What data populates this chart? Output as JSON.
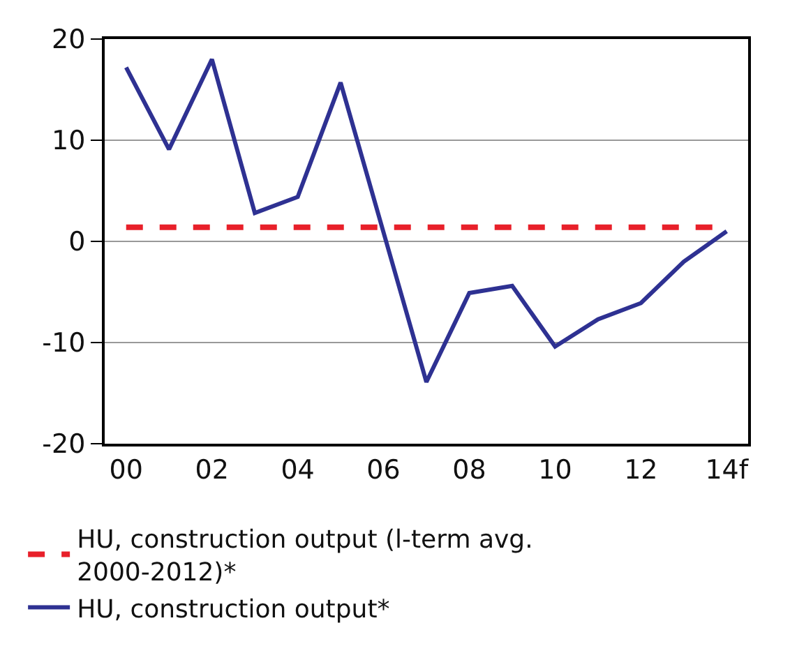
{
  "chart_data": {
    "type": "line",
    "categories": [
      "00",
      null,
      "02",
      null,
      "04",
      null,
      "06",
      null,
      "08",
      null,
      "10",
      null,
      "12",
      null,
      "14f"
    ],
    "series": [
      {
        "name": "HU, construction output*",
        "color": "#2e3192",
        "values": [
          17.2,
          9.1,
          18.0,
          2.8,
          4.4,
          15.7,
          0.9,
          -13.9,
          -5.1,
          -4.4,
          -10.4,
          -7.7,
          -6.1,
          -2.0,
          1.0
        ]
      }
    ],
    "ref_lines": [
      {
        "axis": "y",
        "value": 1.4,
        "label": "HU, construction output (l-term avg. 2000-2012)*",
        "color": "#e8202a",
        "line_style": "dashed"
      }
    ],
    "ylim": [
      -20,
      20
    ],
    "yticks": [
      -20,
      -10,
      0,
      10,
      20
    ],
    "grid": "y",
    "legend": "bottom",
    "marker": "none",
    "line_style": "solid"
  }
}
